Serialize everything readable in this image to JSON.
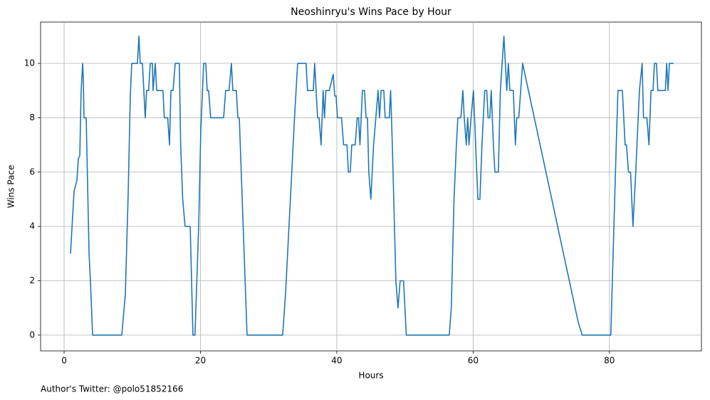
{
  "chart_data": {
    "type": "line",
    "title": "Neoshinryu's Wins Pace by Hour",
    "x_label": "Hours",
    "y_label": "Wins Pace",
    "footer": "Author's Twitter: @polo51852166",
    "color": "#1f77b4",
    "grid": true,
    "xlim": [
      -3.45,
      93.5
    ],
    "ylim": [
      -0.58,
      11.52
    ],
    "xticks": [
      0,
      20,
      40,
      60,
      80
    ],
    "yticks": [
      0,
      2,
      4,
      6,
      8,
      10
    ],
    "x": [
      0.94,
      1.46,
      1.88,
      2.09,
      2.3,
      2.5,
      2.72,
      2.82,
      2.92,
      3.24,
      3.66,
      3.86,
      4.18,
      8.46,
      8.98,
      9.4,
      9.71,
      9.92,
      10.76,
      10.97,
      11.17,
      11.49,
      11.9,
      12.1,
      12.4,
      12.64,
      12.95,
      13.05,
      13.37,
      13.58,
      14.5,
      14.7,
      15.2,
      15.46,
      15.67,
      15.98,
      16.3,
      16.9,
      17.1,
      17.4,
      17.75,
      18.5,
      18.9,
      19.2,
      19.74,
      20.05,
      20.47,
      20.78,
      20.99,
      21.2,
      21.5,
      23.4,
      23.7,
      24.2,
      24.54,
      24.75,
      25.27,
      25.48,
      25.7,
      26.84,
      32.06,
      32.48,
      33.4,
      33.8,
      34.26,
      35.5,
      35.7,
      36.55,
      36.76,
      37.18,
      37.4,
      37.7,
      38.0,
      38.2,
      38.4,
      38.9,
      39.48,
      39.7,
      39.9,
      40.1,
      40.7,
      41.0,
      41.5,
      41.7,
      41.98,
      42.2,
      42.7,
      43.0,
      43.2,
      43.4,
      43.76,
      44.07,
      44.3,
      44.5,
      44.7,
      45.0,
      45.4,
      46.06,
      46.27,
      46.5,
      46.9,
      47.1,
      47.7,
      47.9,
      48.15,
      48.67,
      48.98,
      49.3,
      49.8,
      50.2,
      56.5,
      56.8,
      57.2,
      57.55,
      57.76,
      58.2,
      58.5,
      58.7,
      59.0,
      59.2,
      59.4,
      59.7,
      60.05,
      60.7,
      61.0,
      61.3,
      61.7,
      62.0,
      62.2,
      62.45,
      62.66,
      62.98,
      63.2,
      63.7,
      64.0,
      64.52,
      64.94,
      65.17,
      65.4,
      65.9,
      66.2,
      66.4,
      66.7,
      67.26,
      75.4,
      76.0,
      80.2,
      81.0,
      81.25,
      81.9,
      82.3,
      82.5,
      82.8,
      83.1,
      83.45,
      83.86,
      84.4,
      84.8,
      85.0,
      85.5,
      85.8,
      86.1,
      86.4,
      86.6,
      86.9,
      87.1,
      88.2,
      88.4,
      88.6,
      88.8,
      89.4
    ],
    "values": [
      3,
      5.3,
      5.7,
      6.5,
      6.6,
      9,
      10,
      9.4,
      8,
      8,
      3,
      2,
      0,
      0,
      1.5,
      5.2,
      8.8,
      10,
      10,
      11,
      10,
      10,
      8,
      9,
      9,
      10,
      10,
      9,
      10,
      9,
      9,
      8,
      8,
      7,
      9,
      9,
      10,
      10,
      7,
      5,
      4,
      4,
      0,
      0,
      4,
      7.5,
      10,
      10,
      9,
      9,
      8,
      8,
      9,
      9,
      10,
      9,
      9,
      8,
      8,
      0,
      0,
      1.5,
      6,
      8,
      10,
      10,
      9,
      9,
      10,
      8,
      8,
      7,
      9,
      8,
      9,
      9,
      9.6,
      8.8,
      8.8,
      8,
      8,
      7,
      7,
      6,
      6,
      7,
      7,
      8,
      8,
      7,
      9,
      9,
      8,
      8,
      6,
      5,
      7,
      9,
      8,
      9,
      9,
      8,
      8,
      9,
      7,
      2,
      1,
      2,
      2,
      0,
      0,
      1,
      5,
      7,
      8,
      8,
      9,
      8,
      7,
      8,
      7,
      8,
      9,
      5,
      5,
      7,
      9,
      9,
      8,
      8,
      9,
      7,
      6,
      6,
      9,
      11,
      9,
      10,
      9,
      9,
      7,
      8,
      8,
      10,
      0.5,
      0,
      0,
      7,
      9,
      9,
      7,
      7,
      6,
      6,
      4,
      6,
      9,
      10,
      8,
      8,
      7,
      9,
      9,
      10,
      10,
      9,
      9,
      10,
      9,
      10,
      10
    ]
  }
}
